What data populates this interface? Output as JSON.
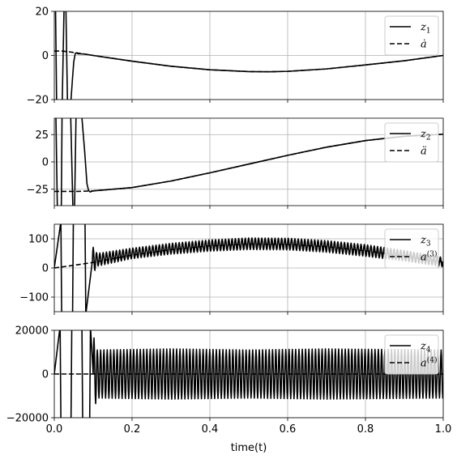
{
  "chart_data": [
    {
      "type": "line",
      "xlim": [
        0,
        1
      ],
      "ylim": [
        -20,
        20
      ],
      "yticks": [
        -20,
        0,
        20
      ],
      "ytick_labels": [
        "−20",
        "0",
        "20"
      ],
      "grid": true,
      "legend_placement": "upper-right",
      "series": [
        {
          "name": "z1",
          "legend_base": "z",
          "legend_sub": "1",
          "style": "solid"
        },
        {
          "name": "ȧ",
          "legend_base": "ȧ",
          "legend_sub": "",
          "style": "dashed"
        }
      ],
      "solid_points": [
        [
          0,
          20
        ],
        [
          0.003,
          25
        ],
        [
          0.006,
          -22
        ],
        [
          0.008,
          -25
        ],
        [
          0.02,
          -25
        ],
        [
          0.026,
          30
        ],
        [
          0.03,
          20
        ],
        [
          0.034,
          -22
        ],
        [
          0.038,
          -25
        ],
        [
          0.043,
          -20
        ],
        [
          0.047,
          -10
        ],
        [
          0.05,
          -3
        ],
        [
          0.054,
          1
        ],
        [
          0.058,
          1.2
        ],
        [
          0.06,
          0.8
        ],
        [
          0.08,
          0.6
        ],
        [
          0.1,
          0
        ],
        [
          0.2,
          -2.6
        ],
        [
          0.3,
          -4.9
        ],
        [
          0.4,
          -6.5
        ],
        [
          0.5,
          -7.3
        ],
        [
          0.55,
          -7.4
        ],
        [
          0.6,
          -7.2
        ],
        [
          0.7,
          -6.1
        ],
        [
          0.8,
          -4.3
        ],
        [
          0.9,
          -2.4
        ],
        [
          1.0,
          0
        ]
      ],
      "dashed_points": [
        [
          0,
          2
        ],
        [
          0.02,
          2
        ],
        [
          0.04,
          1.6
        ],
        [
          0.06,
          1.1
        ],
        [
          0.1,
          0
        ],
        [
          0.2,
          -2.6
        ],
        [
          0.3,
          -4.9
        ],
        [
          0.4,
          -6.5
        ],
        [
          0.5,
          -7.3
        ],
        [
          0.55,
          -7.4
        ],
        [
          0.6,
          -7.2
        ],
        [
          0.7,
          -6.1
        ],
        [
          0.8,
          -4.3
        ],
        [
          0.9,
          -2.4
        ],
        [
          1.0,
          0
        ]
      ]
    },
    {
      "type": "line",
      "xlim": [
        0,
        1
      ],
      "ylim": [
        -40,
        40
      ],
      "yticks": [
        -25,
        0,
        25
      ],
      "ytick_labels": [
        "−25",
        "0",
        "25"
      ],
      "grid": true,
      "legend_placement": "upper-right",
      "series": [
        {
          "name": "z2",
          "legend_base": "z",
          "legend_sub": "2",
          "style": "solid"
        },
        {
          "name": "ä",
          "legend_base": "ä",
          "legend_sub": "",
          "style": "dashed"
        }
      ],
      "solid_points": [
        [
          0,
          40
        ],
        [
          0.004,
          45
        ],
        [
          0.008,
          -45
        ],
        [
          0.018,
          -45
        ],
        [
          0.02,
          45
        ],
        [
          0.042,
          45
        ],
        [
          0.048,
          -45
        ],
        [
          0.052,
          -45
        ],
        [
          0.056,
          45
        ],
        [
          0.07,
          45
        ],
        [
          0.078,
          10
        ],
        [
          0.084,
          -20
        ],
        [
          0.088,
          -26
        ],
        [
          0.092,
          -27.5
        ],
        [
          0.1,
          -26.5
        ],
        [
          0.2,
          -23.5
        ],
        [
          0.3,
          -17.5
        ],
        [
          0.4,
          -10
        ],
        [
          0.5,
          -2
        ],
        [
          0.6,
          6
        ],
        [
          0.7,
          13.5
        ],
        [
          0.8,
          19.5
        ],
        [
          0.9,
          23.5
        ],
        [
          1.0,
          25.3
        ]
      ],
      "dashed_points": [
        [
          0,
          -27
        ],
        [
          0.06,
          -27
        ],
        [
          0.1,
          -26.5
        ],
        [
          0.2,
          -23.5
        ],
        [
          0.3,
          -17.5
        ],
        [
          0.4,
          -10
        ],
        [
          0.5,
          -2
        ],
        [
          0.6,
          6
        ],
        [
          0.7,
          13.5
        ],
        [
          0.8,
          19.5
        ],
        [
          0.9,
          23.5
        ],
        [
          1.0,
          25.3
        ]
      ]
    },
    {
      "type": "line",
      "xlim": [
        0,
        1
      ],
      "ylim": [
        -150,
        150
      ],
      "yticks": [
        -100,
        0,
        100
      ],
      "ytick_labels": [
        "−100",
        "0",
        "100"
      ],
      "grid": true,
      "legend_placement": "upper-right",
      "series": [
        {
          "name": "z3",
          "legend_base": "z",
          "legend_sub": "3",
          "style": "solid"
        },
        {
          "name": "a(3)",
          "legend_base": "a",
          "legend_sup": "(3)",
          "style": "dashed"
        }
      ],
      "spike_x": [
        0.018,
        0.048,
        0.08
      ],
      "spike_range": [
        -160,
        160
      ],
      "oscillation_start": 0.098,
      "oscillation_period": 0.0085,
      "center_curve": [
        [
          0.098,
          25
        ],
        [
          0.2,
          50
        ],
        [
          0.3,
          66
        ],
        [
          0.4,
          77
        ],
        [
          0.5,
          83
        ],
        [
          0.6,
          82
        ],
        [
          0.7,
          74
        ],
        [
          0.8,
          60
        ],
        [
          0.9,
          42
        ],
        [
          1.0,
          20
        ]
      ],
      "amplitude_curve": [
        [
          0.098,
          50
        ],
        [
          0.11,
          22
        ],
        [
          0.2,
          18
        ],
        [
          0.5,
          20
        ],
        [
          0.8,
          20
        ],
        [
          1.0,
          16
        ]
      ],
      "dashed_points": [
        [
          0,
          0
        ],
        [
          0.05,
          9
        ],
        [
          0.1,
          19
        ],
        [
          0.2,
          44
        ],
        [
          0.3,
          63
        ],
        [
          0.4,
          76
        ],
        [
          0.5,
          82
        ],
        [
          0.6,
          81
        ],
        [
          0.7,
          73
        ],
        [
          0.8,
          59
        ],
        [
          0.9,
          41
        ],
        [
          1.0,
          20
        ]
      ]
    },
    {
      "type": "line",
      "xlim": [
        0,
        1
      ],
      "ylim": [
        -20000,
        20000
      ],
      "yticks": [
        -20000,
        0,
        20000
      ],
      "ytick_labels": [
        "−20000",
        "0",
        "20000"
      ],
      "grid": true,
      "legend_placement": "upper-right",
      "series": [
        {
          "name": "z4",
          "legend_base": "z",
          "legend_sub": "4",
          "style": "solid"
        },
        {
          "name": "a(4)",
          "legend_base": "a",
          "legend_sup": "(4)",
          "style": "dashed"
        }
      ],
      "spike_x": [
        0.016,
        0.044,
        0.072,
        0.092
      ],
      "spike_range": [
        -22000,
        22000
      ],
      "oscillation_start": 0.1,
      "oscillation_period": 0.0085,
      "center_curve": [
        [
          0.1,
          0
        ],
        [
          1.0,
          0
        ]
      ],
      "amplitude_curve": [
        [
          0.1,
          18000
        ],
        [
          0.11,
          11000
        ],
        [
          0.3,
          11500
        ],
        [
          0.5,
          11000
        ],
        [
          0.7,
          11500
        ],
        [
          1.0,
          11000
        ]
      ],
      "dashed_points": [
        [
          0,
          0
        ],
        [
          0.1,
          0
        ],
        [
          1.0,
          0
        ]
      ]
    }
  ],
  "xaxis": {
    "label": "time(t)",
    "ticks": [
      0,
      0.2,
      0.4,
      0.6,
      0.8,
      1.0
    ],
    "tick_labels": [
      "0.0",
      "0.2",
      "0.4",
      "0.6",
      "0.8",
      "1.0"
    ]
  }
}
